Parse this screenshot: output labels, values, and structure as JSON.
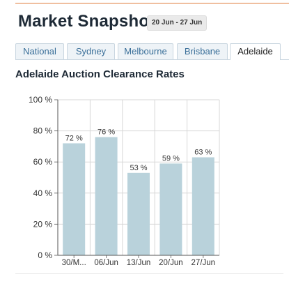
{
  "header": {
    "title": "Market Snapshot",
    "date_range": "20 Jun - 27 Jun"
  },
  "tabs": [
    {
      "label": "National",
      "active": false
    },
    {
      "label": "Sydney",
      "active": false
    },
    {
      "label": "Melbourne",
      "active": false
    },
    {
      "label": "Brisbane",
      "active": false
    },
    {
      "label": "Adelaide",
      "active": true
    }
  ],
  "section": {
    "title": "Adelaide Auction Clearance Rates"
  },
  "colors": {
    "accent_line": "#e07a3a",
    "bar_fill": "#b9d2db",
    "tab_text": "#3a6f99"
  },
  "chart_data": {
    "type": "bar",
    "categories": [
      "30/M...",
      "06/Jun",
      "13/Jun",
      "20/Jun",
      "27/Jun"
    ],
    "values": [
      72,
      76,
      53,
      59,
      63
    ],
    "data_labels": [
      "72 %",
      "76 %",
      "53 %",
      "59 %",
      "63 %"
    ],
    "yticks": [
      "0 %",
      "20 %",
      "40 %",
      "60 %",
      "80 %",
      "100 %"
    ],
    "ylim": [
      0,
      100
    ],
    "grid": true,
    "legend": "none"
  }
}
